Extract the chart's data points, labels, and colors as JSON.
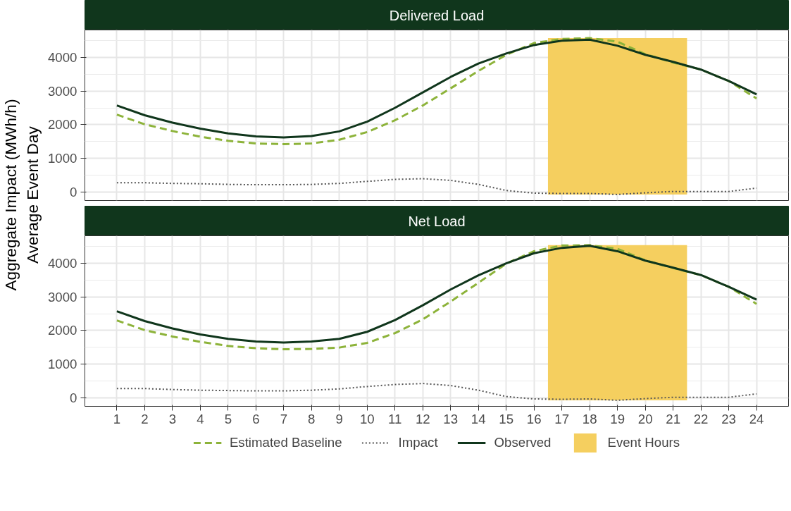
{
  "chart_data": [
    {
      "type": "line",
      "title": "Delivered Load",
      "ylabel": "Aggregate Impact (MWh/h)\nAverage Event Day",
      "x": [
        1,
        2,
        3,
        4,
        5,
        6,
        7,
        8,
        9,
        10,
        11,
        12,
        13,
        14,
        15,
        16,
        17,
        18,
        19,
        20,
        21,
        22,
        23,
        24
      ],
      "series": [
        {
          "color": "#8db33a",
          "line_style": "dashed",
          "values": [
            2300,
            2010,
            1810,
            1640,
            1520,
            1440,
            1420,
            1440,
            1550,
            1780,
            2130,
            2570,
            3080,
            3600,
            4080,
            4430,
            4550,
            4580,
            4470,
            4100,
            3850,
            3640,
            3300,
            2780
          ]
        },
        {
          "color": "#555555",
          "line_style": "dotted",
          "values": [
            270,
            270,
            250,
            240,
            220,
            210,
            210,
            220,
            250,
            310,
            370,
            390,
            340,
            220,
            40,
            -40,
            -50,
            -50,
            -80,
            -30,
            10,
            10,
            10,
            110
          ]
        },
        {
          "color": "#10361c",
          "line_style": "solid",
          "values": [
            2570,
            2280,
            2060,
            1880,
            1740,
            1650,
            1620,
            1660,
            1800,
            2090,
            2500,
            2960,
            3420,
            3820,
            4120,
            4370,
            4500,
            4530,
            4350,
            4080,
            3870,
            3640,
            3300,
            2900
          ]
        }
      ],
      "bands": [
        {
          "axis": "x",
          "from": 16.5,
          "to": 21.5,
          "color": "#f5cf5f"
        }
      ],
      "xlim": [
        -0.15,
        25.15
      ],
      "xticks": [
        1,
        2,
        3,
        4,
        5,
        6,
        7,
        8,
        9,
        10,
        11,
        12,
        13,
        14,
        15,
        16,
        17,
        18,
        19,
        20,
        21,
        22,
        23,
        24
      ],
      "ylim": [
        -260,
        4820
      ],
      "yticks": [
        0,
        1000,
        2000,
        3000,
        4000
      ],
      "grid": true,
      "tick_labels": "y"
    },
    {
      "type": "line",
      "title": "Net Load",
      "x": [
        1,
        2,
        3,
        4,
        5,
        6,
        7,
        8,
        9,
        10,
        11,
        12,
        13,
        14,
        15,
        16,
        17,
        18,
        19,
        20,
        21,
        22,
        23,
        24
      ],
      "series": [
        {
          "name": "Estimated Baseline",
          "color": "#8db33a",
          "line_style": "dashed",
          "values": [
            2300,
            2010,
            1820,
            1660,
            1540,
            1470,
            1440,
            1450,
            1490,
            1630,
            1920,
            2330,
            2860,
            3420,
            3990,
            4360,
            4530,
            4540,
            4430,
            4090,
            3860,
            3650,
            3300,
            2790
          ]
        },
        {
          "name": "Impact",
          "color": "#555555",
          "line_style": "dotted",
          "values": [
            270,
            270,
            240,
            220,
            210,
            200,
            200,
            220,
            260,
            330,
            390,
            420,
            360,
            220,
            30,
            -40,
            -50,
            -40,
            -80,
            -30,
            10,
            10,
            10,
            110
          ]
        },
        {
          "name": "Observed",
          "color": "#10361c",
          "line_style": "solid",
          "values": [
            2570,
            2280,
            2060,
            1880,
            1750,
            1670,
            1640,
            1670,
            1750,
            1960,
            2310,
            2750,
            3220,
            3640,
            4000,
            4300,
            4460,
            4520,
            4360,
            4080,
            3870,
            3650,
            3300,
            2920
          ]
        }
      ],
      "bands": [
        {
          "axis": "x",
          "from": 16.5,
          "to": 21.5,
          "label": "Event Hours",
          "color": "#f5cf5f"
        }
      ],
      "xlim": [
        -0.15,
        25.15
      ],
      "xticks": [
        1,
        2,
        3,
        4,
        5,
        6,
        7,
        8,
        9,
        10,
        11,
        12,
        13,
        14,
        15,
        16,
        17,
        18,
        19,
        20,
        21,
        22,
        23,
        24
      ],
      "ylim": [
        -260,
        4820
      ],
      "yticks": [
        0,
        1000,
        2000,
        3000,
        4000
      ],
      "grid": true,
      "legend": "bottom"
    }
  ]
}
